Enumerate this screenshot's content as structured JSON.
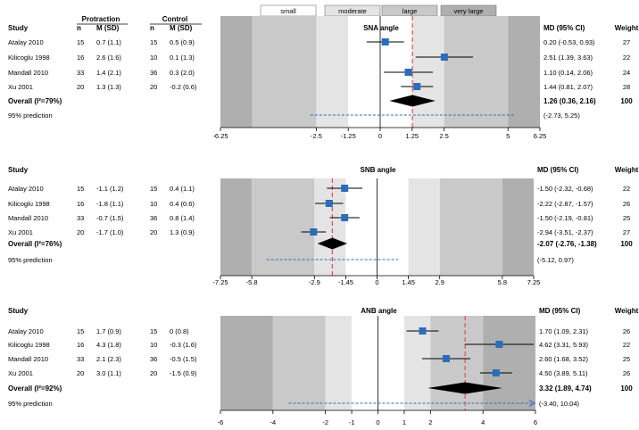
{
  "legend": {
    "labels": [
      "small",
      "moderate",
      "large",
      "very large"
    ],
    "colors": [
      "#ffffff",
      "#e4e4e4",
      "#c9c9c9",
      "#afafaf"
    ]
  },
  "colors": {
    "square": "#2a6ebb",
    "prediction": "#2a6ebb",
    "diamond": "#000000",
    "pooled_line": "#e05050",
    "zone_1": "#ffffff",
    "zone_2": "#e4e4e4",
    "zone_3": "#c9c9c9",
    "zone_4": "#afafaf"
  },
  "chart_data": [
    {
      "type": "forest",
      "title": "SNA angle",
      "headers": {
        "study": "Study",
        "group1": "Protraction",
        "group2": "Control",
        "n": "n",
        "msd": "M (SD)",
        "md": "MD (95% CI)",
        "weight": "Weight"
      },
      "ticks": [
        "-6.25",
        "-2.5",
        "-1.25",
        "0",
        "1.25",
        "2.5",
        "5",
        "6.25"
      ],
      "xlim": [
        -6.25,
        6.25
      ],
      "zones": [
        1.25,
        2.5,
        5
      ],
      "studies": [
        {
          "name": "Atalay 2010",
          "n1": "15",
          "m1": "0.7 (1.1)",
          "n2": "15",
          "m2": "0.5 (0.9)",
          "md": 0.2,
          "lo": -0.53,
          "hi": 0.93,
          "md_text": "0.20 (-0.53, 0.93)",
          "weight": "27"
        },
        {
          "name": "Kilicoglu 1998",
          "n1": "16",
          "m1": "2.6 (1.6)",
          "n2": "10",
          "m2": "0.1 (1.3)",
          "md": 2.51,
          "lo": 1.39,
          "hi": 3.63,
          "md_text": "2.51 (1.39, 3.63)",
          "weight": "22"
        },
        {
          "name": "Mandall 2010",
          "n1": "33",
          "m1": "1.4 (2.1)",
          "n2": "36",
          "m2": "0.3 (2.0)",
          "md": 1.1,
          "lo": 0.14,
          "hi": 2.06,
          "md_text": "1.10 (0.14, 2.06)",
          "weight": "24"
        },
        {
          "name": "Xu 2001",
          "n1": "20",
          "m1": "1.3 (1.3)",
          "n2": "20",
          "m2": "-0.2 (0.6)",
          "md": 1.44,
          "lo": 0.81,
          "hi": 2.07,
          "md_text": "1.44 (0.81, 2.07)",
          "weight": "28"
        }
      ],
      "overall": {
        "label": "Overall (I²=79%)",
        "md": 1.26,
        "lo": 0.36,
        "hi": 2.16,
        "md_text": "1.26 (0.36, 2.16)",
        "weight": "100"
      },
      "prediction": {
        "label": "95% prediction",
        "lo": -2.73,
        "hi": 5.25,
        "text": "(-2.73, 5.25)",
        "arrow": false
      }
    },
    {
      "type": "forest",
      "title": "SNB angle",
      "headers": {
        "study": "Study",
        "md": "MD (95% CI)",
        "weight": "Weight"
      },
      "ticks": [
        "-7.25",
        "-5.8",
        "-2.9",
        "-1.45",
        "0",
        "1.45",
        "2.9",
        "5.8",
        "7.25"
      ],
      "xlim": [
        -7.25,
        7.25
      ],
      "zones": [
        1.45,
        2.9,
        5.8
      ],
      "studies": [
        {
          "name": "Atalay 2010",
          "n1": "15",
          "m1": "-1.1 (1.2)",
          "n2": "15",
          "m2": "0.4 (1.1)",
          "md": -1.5,
          "lo": -2.32,
          "hi": -0.68,
          "md_text": "-1.50 (-2.32, -0.68)",
          "weight": "22"
        },
        {
          "name": "Kilicoglu 1998",
          "n1": "16",
          "m1": "-1.8 (1.1)",
          "n2": "10",
          "m2": "0.4 (0.6)",
          "md": -2.22,
          "lo": -2.87,
          "hi": -1.57,
          "md_text": "-2.22 (-2.87, -1.57)",
          "weight": "26"
        },
        {
          "name": "Mandall 2010",
          "n1": "33",
          "m1": "-0.7 (1.5)",
          "n2": "36",
          "m2": "0.8 (1.4)",
          "md": -1.5,
          "lo": -2.19,
          "hi": -0.81,
          "md_text": "-1.50 (-2.19, -0.81)",
          "weight": "25"
        },
        {
          "name": "Xu 2001",
          "n1": "20",
          "m1": "-1.7 (1.0)",
          "n2": "20",
          "m2": "1.3 (0.9)",
          "md": -2.94,
          "lo": -3.51,
          "hi": -2.37,
          "md_text": "-2.94 (-3.51, -2.37)",
          "weight": "27"
        }
      ],
      "overall": {
        "label": "Overall (I²=76%)",
        "md": -2.07,
        "lo": -2.76,
        "hi": -1.38,
        "md_text": "-2.07 (-2.76, -1.38)",
        "weight": "100"
      },
      "prediction": {
        "label": "95% prediction",
        "lo": -5.12,
        "hi": 0.97,
        "text": "(-5.12, 0.97)",
        "arrow": false
      }
    },
    {
      "type": "forest",
      "title": "ANB angle",
      "headers": {
        "study": "Study",
        "md": "MD (95% CI)",
        "weight": "Weight"
      },
      "ticks": [
        "-6",
        "-4",
        "-2",
        "-1",
        "0",
        "1",
        "2",
        "4",
        "6"
      ],
      "xlim": [
        -6,
        6
      ],
      "zones": [
        1,
        2,
        4
      ],
      "studies": [
        {
          "name": "Atalay 2010",
          "n1": "15",
          "m1": "1.7 (0.9)",
          "n2": "15",
          "m2": "0 (0.8)",
          "md": 1.7,
          "lo": 1.09,
          "hi": 2.31,
          "md_text": "1.70 (1.09, 2.31)",
          "weight": "26"
        },
        {
          "name": "Kilicoglu 1998",
          "n1": "16",
          "m1": "4.3 (1.8)",
          "n2": "10",
          "m2": "-0.3 (1.6)",
          "md": 4.62,
          "lo": 3.31,
          "hi": 5.93,
          "md_text": "4.62 (3.31, 5.93)",
          "weight": "22"
        },
        {
          "name": "Mandall 2010",
          "n1": "33",
          "m1": "2.1 (2.3)",
          "n2": "36",
          "m2": "-0.5 (1.5)",
          "md": 2.6,
          "lo": 1.68,
          "hi": 3.52,
          "md_text": "2.60 (1.68, 3.52)",
          "weight": "25"
        },
        {
          "name": "Xu 2001",
          "n1": "20",
          "m1": "3.0 (1.1)",
          "n2": "20",
          "m2": "-1.5 (0.9)",
          "md": 4.5,
          "lo": 3.89,
          "hi": 5.11,
          "md_text": "4.50 (3.89, 5.11)",
          "weight": "26"
        }
      ],
      "overall": {
        "label": "Overall (I²=92%)",
        "md": 3.32,
        "lo": 1.89,
        "hi": 4.74,
        "md_text": "3.32 (1.89, 4.74)",
        "weight": "100"
      },
      "prediction": {
        "label": "95% prediction",
        "lo": -3.4,
        "hi": 10.04,
        "text": "(-3.40, 10.04)",
        "arrow": true
      }
    }
  ]
}
